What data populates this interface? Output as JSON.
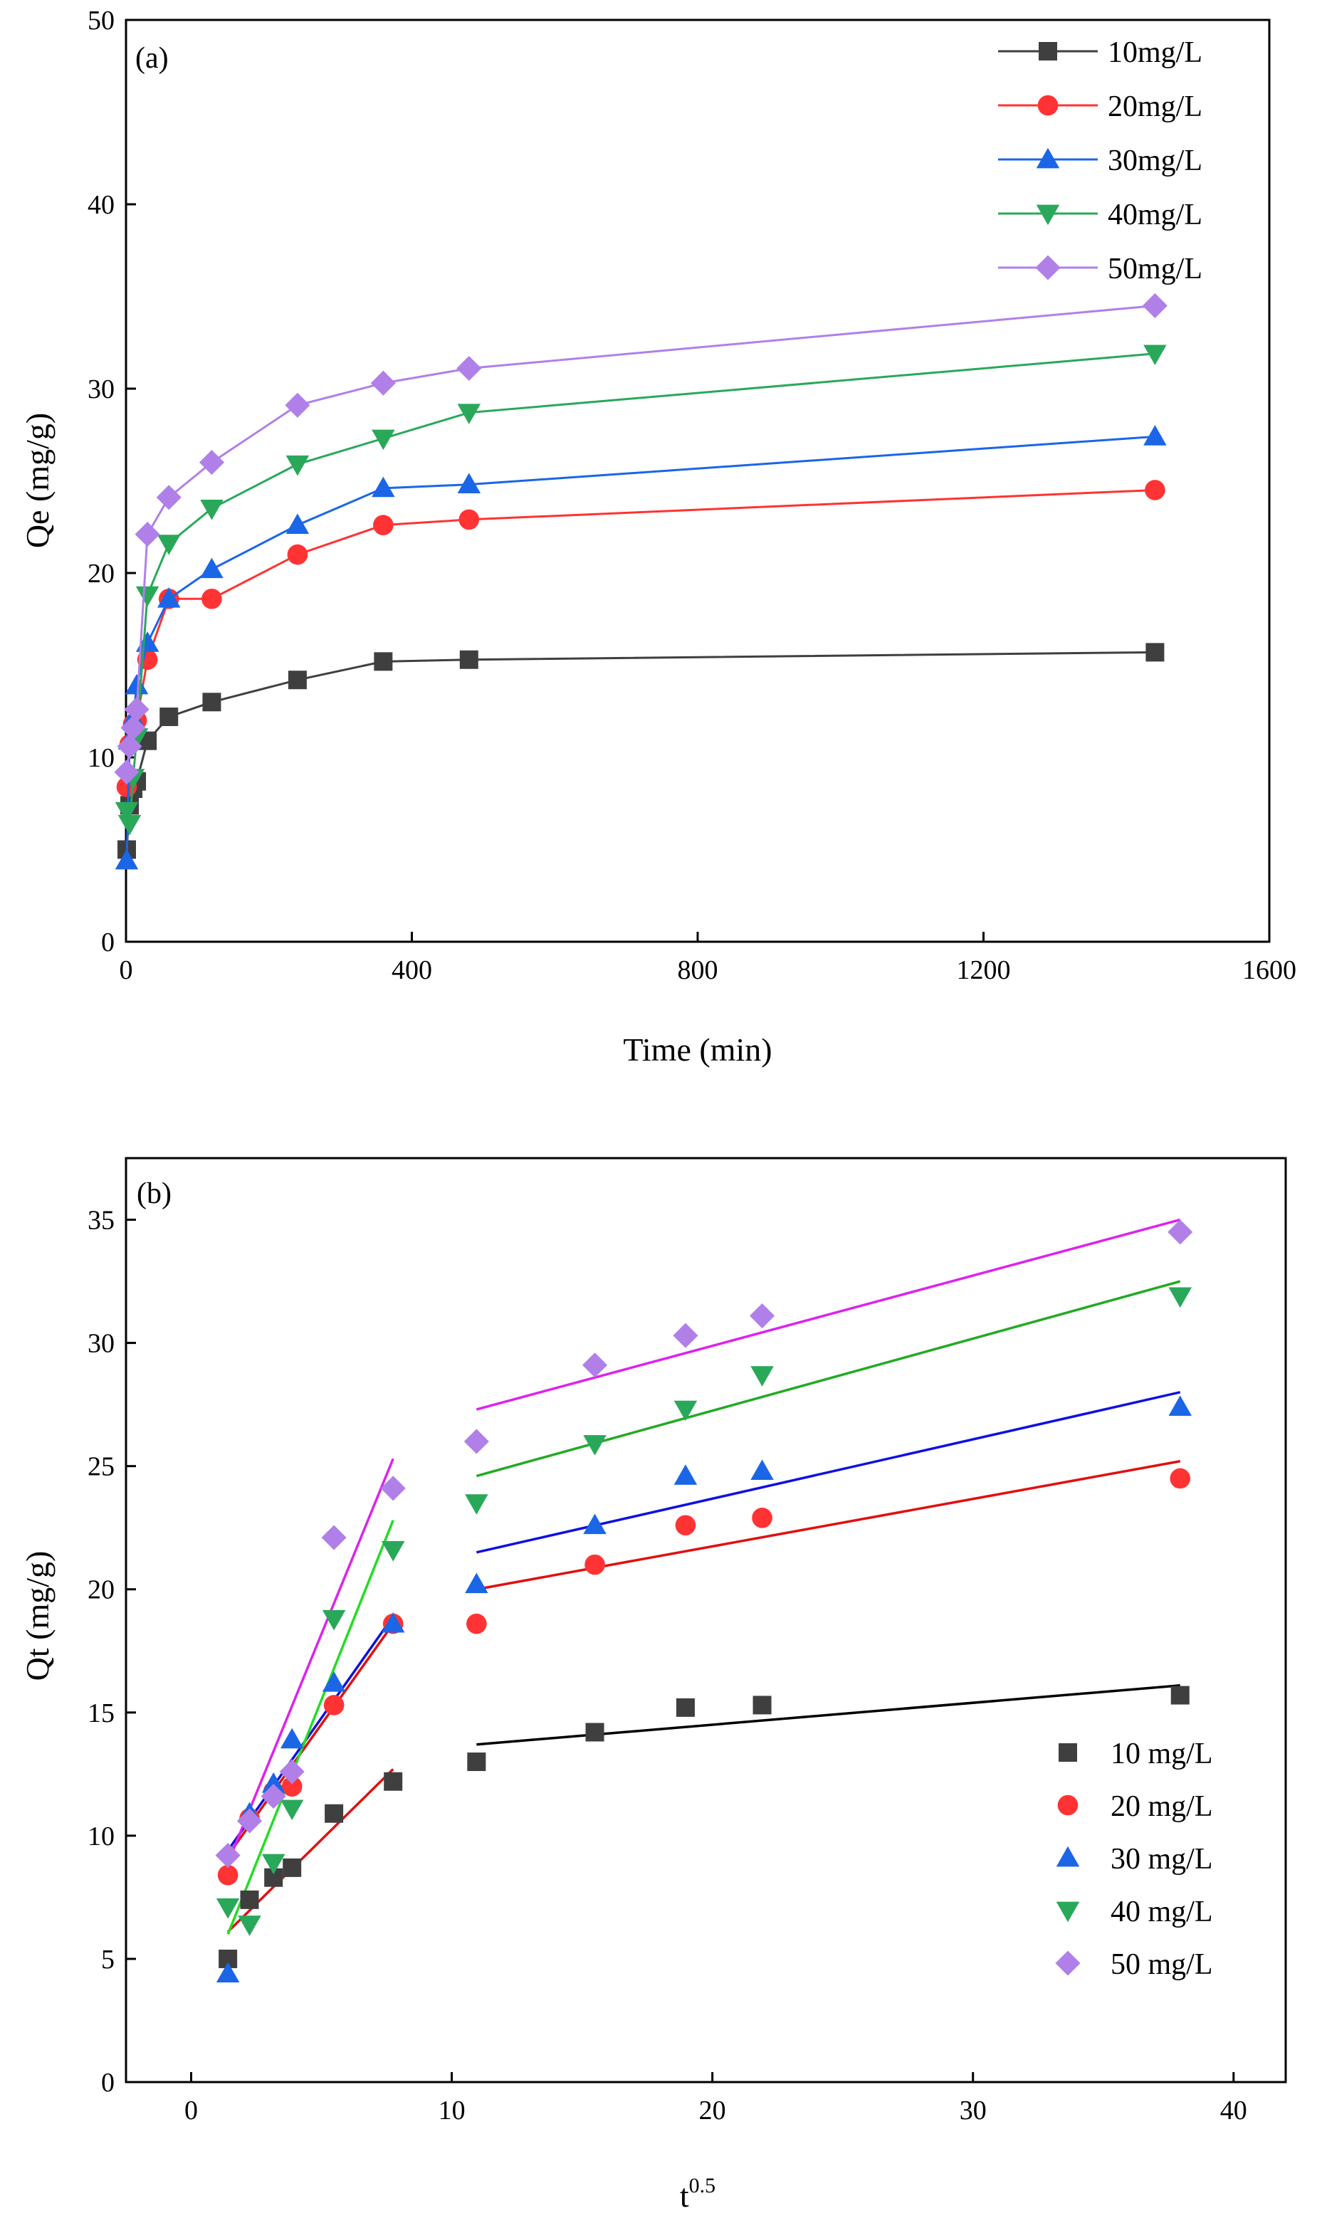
{
  "chart_data": [
    {
      "type": "line",
      "panel_label": "(a)",
      "xlabel": "Time (min)",
      "ylabel": "Qe (mg/g)",
      "xlim": [
        0,
        1600
      ],
      "ylim": [
        0,
        50
      ],
      "xticks": [
        0,
        400,
        800,
        1200,
        1600
      ],
      "yticks": [
        0,
        10,
        20,
        30,
        40,
        50
      ],
      "grid": false,
      "legend_position": "top-right",
      "x": [
        1,
        5,
        10,
        15,
        30,
        60,
        120,
        240,
        360,
        480,
        1440
      ],
      "series": [
        {
          "name": "10mg/L",
          "color": "#3f3f3f",
          "marker": "square",
          "values": [
            5.0,
            7.4,
            8.3,
            8.7,
            10.9,
            12.2,
            13.0,
            14.2,
            15.2,
            15.3,
            15.7
          ]
        },
        {
          "name": "20mg/L",
          "color": "#ff3333",
          "marker": "circle",
          "values": [
            8.4,
            10.7,
            11.8,
            12.0,
            15.3,
            18.6,
            18.6,
            21.0,
            22.6,
            22.9,
            24.5
          ]
        },
        {
          "name": "30mg/L",
          "color": "#1a66e6",
          "marker": "triangle-up",
          "values": [
            4.4,
            10.9,
            12.1,
            13.9,
            16.2,
            18.6,
            20.2,
            22.6,
            24.6,
            24.8,
            27.4
          ]
        },
        {
          "name": "40mg/L",
          "color": "#29a85a",
          "marker": "triangle-down",
          "values": [
            7.1,
            6.4,
            8.9,
            11.1,
            18.8,
            21.6,
            23.5,
            25.9,
            27.3,
            28.7,
            31.9
          ]
        },
        {
          "name": "50mg/L",
          "color": "#b080e8",
          "marker": "diamond",
          "values": [
            9.2,
            10.6,
            11.6,
            12.6,
            22.1,
            24.1,
            26.0,
            29.1,
            30.3,
            31.1,
            34.5
          ]
        }
      ]
    },
    {
      "type": "scatter",
      "panel_label": "(b)",
      "xlabel_base": "t",
      "xlabel_sup": "0.5",
      "ylabel": "Qt (mg/g)",
      "xlim": [
        -2.5,
        42
      ],
      "ylim": [
        0,
        37.5
      ],
      "xticks": [
        0,
        10,
        20,
        30,
        40
      ],
      "yticks": [
        0,
        5,
        10,
        15,
        20,
        25,
        30,
        35
      ],
      "grid": false,
      "legend_position": "bottom-right",
      "x": [
        1.41,
        2.24,
        3.16,
        3.87,
        5.48,
        7.75,
        10.95,
        15.49,
        18.97,
        21.91,
        37.95
      ],
      "series": [
        {
          "name": "10 mg/L",
          "color": "#3f3f3f",
          "marker": "square",
          "values": [
            5.0,
            7.4,
            8.3,
            8.7,
            10.9,
            12.2,
            13.0,
            14.2,
            15.2,
            15.3,
            15.7
          ],
          "fits": [
            {
              "x": [
                1.41,
                7.75
              ],
              "y": [
                6.1,
                12.7
              ],
              "color": "#e01010"
            },
            {
              "x": [
                10.95,
                37.95
              ],
              "y": [
                13.7,
                16.1
              ],
              "color": "#000000"
            }
          ]
        },
        {
          "name": "20 mg/L",
          "color": "#ff3333",
          "marker": "circle",
          "values": [
            8.4,
            10.7,
            11.8,
            12.0,
            15.3,
            18.6,
            18.6,
            21.0,
            22.6,
            22.9,
            24.5
          ],
          "fits": [
            {
              "x": [
                1.41,
                7.75
              ],
              "y": [
                9.2,
                18.6
              ],
              "color": "#e01010"
            },
            {
              "x": [
                10.95,
                37.95
              ],
              "y": [
                20.0,
                25.2
              ],
              "color": "#e01010"
            }
          ]
        },
        {
          "name": "30 mg/L",
          "color": "#1a66e6",
          "marker": "triangle-up",
          "values": [
            4.4,
            10.9,
            12.1,
            13.9,
            16.2,
            18.6,
            20.2,
            22.6,
            24.6,
            24.8,
            27.4
          ],
          "fits": [
            {
              "x": [
                1.41,
                7.75
              ],
              "y": [
                9.4,
                18.9
              ],
              "color": "#1010e0"
            },
            {
              "x": [
                10.95,
                37.95
              ],
              "y": [
                21.5,
                28.0
              ],
              "color": "#1010e0"
            }
          ]
        },
        {
          "name": "40 mg/L",
          "color": "#29a85a",
          "marker": "triangle-down",
          "values": [
            7.1,
            6.4,
            8.9,
            11.1,
            18.8,
            21.6,
            23.5,
            25.9,
            27.3,
            28.7,
            31.9
          ],
          "fits": [
            {
              "x": [
                1.41,
                7.75
              ],
              "y": [
                6.0,
                22.8
              ],
              "color": "#22dd22"
            },
            {
              "x": [
                10.95,
                37.95
              ],
              "y": [
                24.6,
                32.5
              ],
              "color": "#22aa22"
            }
          ]
        },
        {
          "name": "50 mg/L",
          "color": "#b080e8",
          "marker": "diamond",
          "values": [
            9.2,
            10.6,
            11.6,
            12.6,
            22.1,
            24.1,
            26.0,
            29.1,
            30.3,
            31.1,
            34.5
          ],
          "fits": [
            {
              "x": [
                1.41,
                7.75
              ],
              "y": [
                8.9,
                25.3
              ],
              "color": "#dd22ee"
            },
            {
              "x": [
                10.95,
                37.95
              ],
              "y": [
                27.3,
                35.0
              ],
              "color": "#dd22ee"
            }
          ]
        }
      ]
    }
  ]
}
